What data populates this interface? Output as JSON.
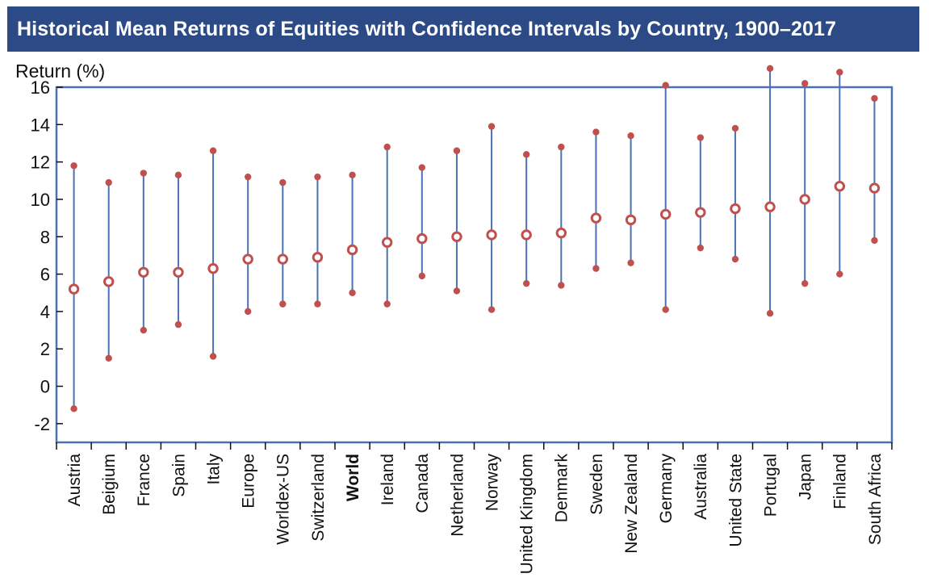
{
  "title": "Historical Mean Returns of Equities with Confidence Intervals by Country, 1900–2017",
  "colors": {
    "title_bg": "#2c4a86",
    "title_text": "#ffffff",
    "frame": "#4a72b5",
    "whisker": "#4a72b5",
    "marker": "#c0504d"
  },
  "chart_data": {
    "type": "errorbar",
    "ylabel": "Return (%)",
    "ylim": [
      -3,
      16
    ],
    "yticks": [
      16,
      14,
      12,
      10,
      8,
      6,
      4,
      2,
      0,
      -2
    ],
    "grid": false,
    "bold_category": "World",
    "categories": [
      "Austria",
      "Beigium",
      "France",
      "Spain",
      "Italy",
      "Europe",
      "Worldex-US",
      "Switzerland",
      "World",
      "Ireland",
      "Canada",
      "Netherland",
      "Norway",
      "United Kingdom",
      "Denmark",
      "Sweden",
      "New Zealand",
      "Germany",
      "Australia",
      "United State",
      "Portugal",
      "Japan",
      "Finland",
      "South Africa"
    ],
    "mean": [
      5.2,
      5.6,
      6.1,
      6.1,
      6.3,
      6.8,
      6.8,
      6.9,
      7.3,
      7.7,
      7.9,
      8.0,
      8.1,
      8.1,
      8.2,
      9.0,
      8.9,
      9.2,
      9.3,
      9.5,
      9.6,
      10.0,
      10.7,
      10.6
    ],
    "upper": [
      11.8,
      10.9,
      11.4,
      11.3,
      12.6,
      11.2,
      10.9,
      11.2,
      11.3,
      12.8,
      11.7,
      12.6,
      13.9,
      12.4,
      12.8,
      13.6,
      13.4,
      16.1,
      13.3,
      13.8,
      17.0,
      16.2,
      16.8,
      15.4
    ],
    "lower": [
      -1.2,
      1.5,
      3.0,
      3.3,
      1.6,
      4.0,
      4.4,
      4.4,
      5.0,
      4.4,
      5.9,
      5.1,
      4.1,
      5.5,
      5.4,
      6.3,
      6.6,
      4.1,
      7.4,
      6.8,
      3.9,
      5.5,
      6.0,
      7.8
    ]
  }
}
